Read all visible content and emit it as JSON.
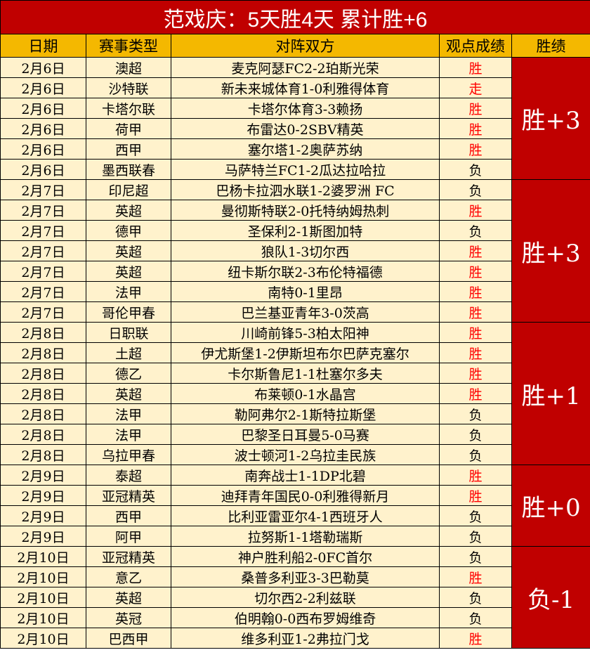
{
  "title": "范戏庆：5天胜4天  累计胜+6",
  "headers": [
    "日期",
    "赛事类型",
    "对阵双方",
    "观点成绩",
    "胜绩"
  ],
  "colors": {
    "title_bg": "#c00000",
    "header_bg": "#f4b800",
    "row_bg": "#fff2cc",
    "win_text": "#ff0000"
  },
  "groups": [
    {
      "summary": "胜+3",
      "rows": [
        {
          "date": "2月6日",
          "league": "澳超",
          "match": "麦克阿瑟FC2-2珀斯光荣",
          "result": "胜"
        },
        {
          "date": "2月6日",
          "league": "沙特联",
          "match": "新未来城体育1-0利雅得体育",
          "result": "走"
        },
        {
          "date": "2月6日",
          "league": "卡塔尔联",
          "match": "卡塔尔体育3-3赖扬",
          "result": "胜"
        },
        {
          "date": "2月6日",
          "league": "荷甲",
          "match": "布雷达0-2SBV精英",
          "result": "胜"
        },
        {
          "date": "2月6日",
          "league": "西甲",
          "match": "塞尔塔1-2奥萨苏纳",
          "result": "胜"
        },
        {
          "date": "2月6日",
          "league": "墨西联春",
          "match": "马萨特兰FC1-2瓜达拉哈拉",
          "result": "负"
        }
      ]
    },
    {
      "summary": "胜+3",
      "rows": [
        {
          "date": "2月7日",
          "league": "印尼超",
          "match": "巴杨卡拉泗水联1-2婆罗洲 FC",
          "result": "负"
        },
        {
          "date": "2月7日",
          "league": "英超",
          "match": "曼彻斯特联2-0托特纳姆热刺",
          "result": "胜"
        },
        {
          "date": "2月7日",
          "league": "德甲",
          "match": "圣保利2-1斯图加特",
          "result": "负"
        },
        {
          "date": "2月7日",
          "league": "英超",
          "match": "狼队1-3切尔西",
          "result": "胜"
        },
        {
          "date": "2月7日",
          "league": "英超",
          "match": "纽卡斯尔联2-3布伦特福德",
          "result": "胜"
        },
        {
          "date": "2月7日",
          "league": "法甲",
          "match": "南特0-1里昂",
          "result": "胜"
        },
        {
          "date": "2月7日",
          "league": "哥伦甲春",
          "match": "巴兰基亚青年3-0茨高",
          "result": "胜"
        }
      ]
    },
    {
      "summary": "胜+1",
      "rows": [
        {
          "date": "2月8日",
          "league": "日职联",
          "match": "川崎前锋5-3柏太阳神",
          "result": "胜"
        },
        {
          "date": "2月8日",
          "league": "土超",
          "match": "伊尤斯堡1-2伊斯坦布尔巴萨克塞尔",
          "result": "胜"
        },
        {
          "date": "2月8日",
          "league": "德乙",
          "match": "卡尔斯鲁尼1-1杜塞尔多夫",
          "result": "胜"
        },
        {
          "date": "2月8日",
          "league": "英超",
          "match": "布莱顿0-1水晶宫",
          "result": "胜"
        },
        {
          "date": "2月8日",
          "league": "法甲",
          "match": "勒阿弗尔2-1斯特拉斯堡",
          "result": "负"
        },
        {
          "date": "2月8日",
          "league": "法甲",
          "match": "巴黎圣日耳曼5-0马赛",
          "result": "负"
        },
        {
          "date": "2月8日",
          "league": "乌拉甲春",
          "match": "波士顿河1-2乌拉圭民族",
          "result": "负"
        }
      ]
    },
    {
      "summary": "胜+0",
      "rows": [
        {
          "date": "2月9日",
          "league": "泰超",
          "match": "南奔战士1-1DP北碧",
          "result": "胜"
        },
        {
          "date": "2月9日",
          "league": "亚冠精英",
          "match": "迪拜青年国民0-0利雅得新月",
          "result": "胜"
        },
        {
          "date": "2月9日",
          "league": "西甲",
          "match": "比利亚雷亚尔4-1西班牙人",
          "result": "负"
        },
        {
          "date": "2月9日",
          "league": "阿甲",
          "match": "拉努斯1-1塔勒瑞斯",
          "result": "负"
        }
      ]
    },
    {
      "summary": "负-1",
      "rows": [
        {
          "date": "2月10日",
          "league": "亚冠精英",
          "match": "神户胜利船2-0FC首尔",
          "result": "负"
        },
        {
          "date": "2月10日",
          "league": "意乙",
          "match": "桑普多利亚3-3巴勒莫",
          "result": "胜"
        },
        {
          "date": "2月10日",
          "league": "英超",
          "match": "切尔西2-2利兹联",
          "result": "负"
        },
        {
          "date": "2月10日",
          "league": "英冠",
          "match": "伯明翰0-0西布罗姆维奇",
          "result": "负"
        },
        {
          "date": "2月10日",
          "league": "巴西甲",
          "match": "维多利亚1-2弗拉门戈",
          "result": "胜"
        }
      ]
    }
  ]
}
